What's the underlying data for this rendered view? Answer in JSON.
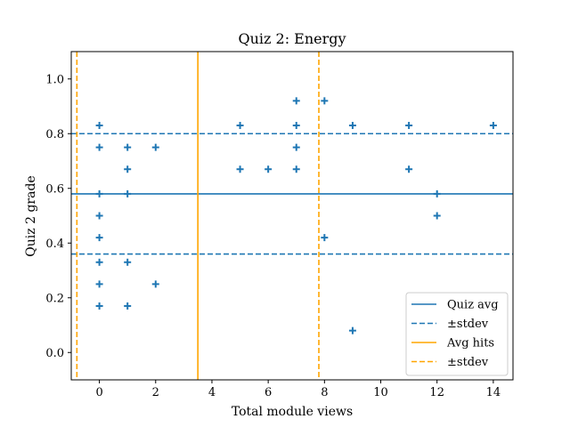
{
  "chart_data": {
    "type": "scatter",
    "title": "Quiz 2: Energy",
    "xlabel": "Total module views",
    "ylabel": "Quiz 2 grade",
    "xlim": [
      -1,
      14.7
    ],
    "ylim": [
      -0.1,
      1.1
    ],
    "xticks": [
      "0",
      "2",
      "4",
      "6",
      "8",
      "10",
      "12",
      "14"
    ],
    "yticks": [
      "0.0",
      "0.2",
      "0.4",
      "0.6",
      "0.8",
      "1.0"
    ],
    "grid": false,
    "legend_position": "lower-right",
    "colors": {
      "blue": "#1f77b4",
      "orange": "#ffa500"
    },
    "marker": "+",
    "points": [
      {
        "x": 0,
        "y": 0.83
      },
      {
        "x": 0,
        "y": 0.75
      },
      {
        "x": 0,
        "y": 0.58
      },
      {
        "x": 0,
        "y": 0.5
      },
      {
        "x": 0,
        "y": 0.42
      },
      {
        "x": 0,
        "y": 0.33
      },
      {
        "x": 0,
        "y": 0.25
      },
      {
        "x": 0,
        "y": 0.17
      },
      {
        "x": 1,
        "y": 0.75
      },
      {
        "x": 1,
        "y": 0.67
      },
      {
        "x": 1,
        "y": 0.58
      },
      {
        "x": 1,
        "y": 0.33
      },
      {
        "x": 1,
        "y": 0.17
      },
      {
        "x": 2,
        "y": 0.75
      },
      {
        "x": 2,
        "y": 0.25
      },
      {
        "x": 5,
        "y": 0.83
      },
      {
        "x": 5,
        "y": 0.67
      },
      {
        "x": 6,
        "y": 0.67
      },
      {
        "x": 7,
        "y": 0.92
      },
      {
        "x": 7,
        "y": 0.83
      },
      {
        "x": 7,
        "y": 0.75
      },
      {
        "x": 7,
        "y": 0.67
      },
      {
        "x": 8,
        "y": 0.92
      },
      {
        "x": 8,
        "y": 0.42
      },
      {
        "x": 9,
        "y": 0.83
      },
      {
        "x": 9,
        "y": 0.08
      },
      {
        "x": 11,
        "y": 0.83
      },
      {
        "x": 11,
        "y": 0.67
      },
      {
        "x": 12,
        "y": 0.58
      },
      {
        "x": 12,
        "y": 0.5
      },
      {
        "x": 14,
        "y": 0.83
      }
    ],
    "reference_lines": [
      {
        "orientation": "horizontal",
        "value": 0.58,
        "style": "solid",
        "color": "#1f77b4",
        "label": "Quiz avg"
      },
      {
        "orientation": "horizontal",
        "value": 0.8,
        "style": "dashed",
        "color": "#1f77b4",
        "label": "±stdev"
      },
      {
        "orientation": "horizontal",
        "value": 0.36,
        "style": "dashed",
        "color": "#1f77b4",
        "label": ""
      },
      {
        "orientation": "vertical",
        "value": 3.5,
        "style": "solid",
        "color": "#ffa500",
        "label": "Avg hits"
      },
      {
        "orientation": "vertical",
        "value": 7.8,
        "style": "dashed",
        "color": "#ffa500",
        "label": "±stdev"
      },
      {
        "orientation": "vertical",
        "value": -0.8,
        "style": "dashed",
        "color": "#ffa500",
        "label": ""
      }
    ],
    "legend": [
      {
        "label": "Quiz avg",
        "color": "#1f77b4",
        "style": "solid"
      },
      {
        "label": "±stdev",
        "color": "#1f77b4",
        "style": "dashed"
      },
      {
        "label": "Avg hits",
        "color": "#ffa500",
        "style": "solid"
      },
      {
        "label": "±stdev",
        "color": "#ffa500",
        "style": "dashed"
      }
    ]
  }
}
